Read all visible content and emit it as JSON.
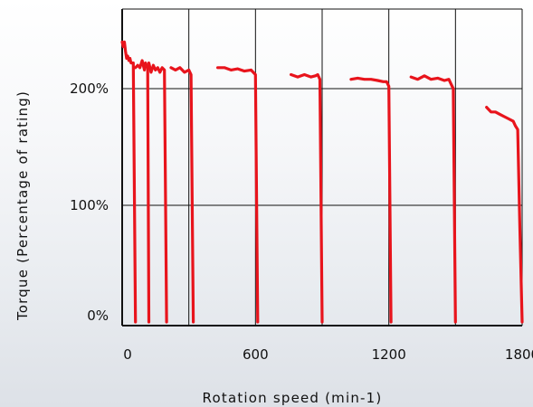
{
  "chart_data": {
    "type": "line",
    "title": "",
    "xlabel": "Rotation speed (min-1)",
    "ylabel": "Torque (Percentage of rating)",
    "xlim": [
      0,
      1800
    ],
    "ylim": [
      0,
      240
    ],
    "x_ticks": [
      {
        "value": 0,
        "label": "0"
      },
      {
        "value": 600,
        "label": "600"
      },
      {
        "value": 1200,
        "label": "1200"
      },
      {
        "value": 1800,
        "label": "1800"
      }
    ],
    "y_ticks": [
      {
        "value": 0,
        "label": "0%"
      },
      {
        "value": 100,
        "label": "100%"
      },
      {
        "value": 200,
        "label": "200%"
      }
    ],
    "x_gridlines": [
      0,
      300,
      600,
      900,
      1200,
      1500,
      1800
    ],
    "y_gridlines": [
      0,
      100,
      200,
      240
    ],
    "grid": true,
    "legend": "none",
    "color": "#e8141c",
    "series": [
      {
        "x": [
          0,
          5,
          10,
          15,
          20,
          25,
          30,
          35,
          40,
          50,
          60
        ],
        "y": [
          240,
          236,
          240,
          232,
          226,
          228,
          224,
          226,
          222,
          222,
          0
        ]
      },
      {
        "x": [
          60,
          70,
          80,
          90,
          100,
          105,
          110,
          115,
          120
        ],
        "y": [
          218,
          220,
          218,
          224,
          216,
          222,
          220,
          218,
          0
        ]
      },
      {
        "x": [
          120,
          130,
          140,
          150,
          160,
          170,
          180,
          190,
          200
        ],
        "y": [
          222,
          214,
          220,
          216,
          218,
          214,
          218,
          216,
          0
        ]
      },
      {
        "x": [
          220,
          240,
          260,
          280,
          300,
          310,
          320
        ],
        "y": [
          218,
          216,
          218,
          214,
          216,
          212,
          0
        ]
      },
      {
        "x": [
          430,
          460,
          490,
          520,
          550,
          580,
          600,
          610
        ],
        "y": [
          218,
          218,
          216,
          217,
          215,
          216,
          212,
          0
        ]
      },
      {
        "x": [
          760,
          790,
          820,
          850,
          870,
          880,
          890,
          900
        ],
        "y": [
          212,
          210,
          212,
          210,
          211,
          212,
          208,
          0
        ]
      },
      {
        "x": [
          1030,
          1060,
          1090,
          1120,
          1150,
          1175,
          1190,
          1200,
          1210
        ],
        "y": [
          208,
          209,
          208,
          208,
          207,
          206,
          206,
          202,
          0
        ]
      },
      {
        "x": [
          1300,
          1330,
          1360,
          1390,
          1420,
          1450,
          1470,
          1480,
          1490,
          1500
        ],
        "y": [
          210,
          208,
          211,
          208,
          209,
          207,
          208,
          204,
          200,
          0
        ]
      },
      {
        "x": [
          1640,
          1660,
          1680,
          1700,
          1720,
          1740,
          1760,
          1770,
          1780,
          1790,
          1800
        ],
        "y": [
          184,
          180,
          180,
          178,
          176,
          174,
          172,
          168,
          165,
          80,
          0
        ]
      }
    ]
  }
}
